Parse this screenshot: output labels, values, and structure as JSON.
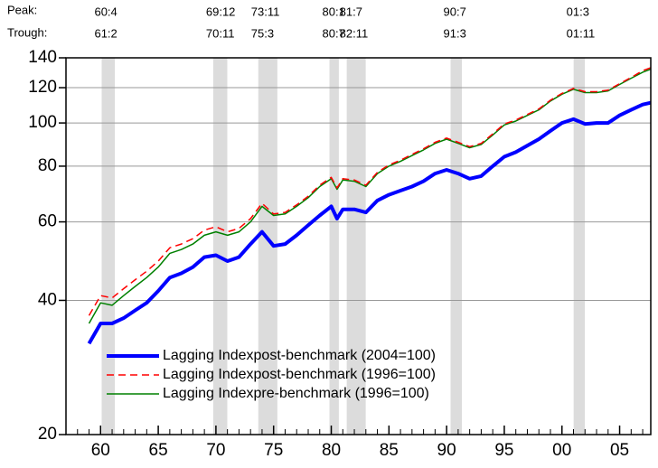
{
  "chart_data": {
    "type": "line",
    "peak_label": "Peak:",
    "trough_label": "Trough:",
    "recessions": [
      {
        "peak": {
          "value": 1960.25,
          "label": "60:4"
        },
        "trough": {
          "value": 1961.08,
          "label": "61:2"
        }
      },
      {
        "peak": {
          "value": 1969.92,
          "label": "69:12"
        },
        "trough": {
          "value": 1970.83,
          "label": "70:11"
        }
      },
      {
        "peak": {
          "value": 1973.83,
          "label": "73:11"
        },
        "trough": {
          "value": 1975.17,
          "label": "75:3"
        }
      },
      {
        "peak": {
          "value": 1980.0,
          "label": "80:1"
        },
        "trough": {
          "value": 1980.5,
          "label": "80:7"
        }
      },
      {
        "peak": {
          "value": 1981.5,
          "label": "81:7"
        },
        "trough": {
          "value": 1982.83,
          "label": "82:11"
        }
      },
      {
        "peak": {
          "value": 1990.5,
          "label": "90:7"
        },
        "trough": {
          "value": 1991.17,
          "label": "91:3"
        }
      },
      {
        "peak": {
          "value": 2001.17,
          "label": "01:3"
        },
        "trough": {
          "value": 2001.83,
          "label": "01:11"
        }
      }
    ],
    "x": [
      1959,
      1960,
      1961,
      1962,
      1963,
      1964,
      1965,
      1966,
      1967,
      1968,
      1969,
      1970,
      1971,
      1972,
      1973,
      1974,
      1975,
      1976,
      1977,
      1978,
      1979,
      1980,
      1980.5,
      1981,
      1982,
      1983,
      1984,
      1985,
      1986,
      1987,
      1988,
      1989,
      1990,
      1991,
      1992,
      1993,
      1994,
      1995,
      1996,
      1997,
      1998,
      1999,
      2000,
      2001,
      2002,
      2003,
      2004,
      2005,
      2006,
      2007,
      2007.7
    ],
    "series": [
      {
        "name": "Lagging Indexpost-benchmark (2004=100)",
        "color": "#0000ff",
        "width": 4,
        "dash": false,
        "values": [
          32,
          35.5,
          35.5,
          36.5,
          38,
          39.5,
          42,
          45,
          46,
          47.5,
          50,
          50.5,
          49,
          50,
          53.5,
          57,
          53,
          53.5,
          56,
          59,
          62,
          65,
          61,
          64,
          64,
          63,
          67,
          69,
          70.5,
          72,
          74,
          77,
          78.5,
          77,
          75,
          76,
          80,
          84,
          86,
          89,
          92,
          96,
          100,
          102,
          99.5,
          100,
          100,
          104,
          107,
          110,
          111
        ]
      },
      {
        "name": "Lagging Indexpost-benchmark (1996=100)",
        "color": "#ff0000",
        "width": 1.5,
        "dash": true,
        "values": [
          37,
          41,
          40.5,
          42.5,
          44.5,
          46.5,
          49,
          52.5,
          53.5,
          55,
          57.5,
          58.5,
          57,
          58,
          61,
          66,
          62.5,
          63,
          65.5,
          68.5,
          72.5,
          75.5,
          71.5,
          75,
          74.5,
          72.5,
          77.5,
          80.5,
          82.5,
          85,
          87.5,
          90.5,
          92.5,
          90.5,
          88.5,
          90,
          94.5,
          99.5,
          101.5,
          104.5,
          107.5,
          112.5,
          116.5,
          119.5,
          117.5,
          117.5,
          118.5,
          122.5,
          126.5,
          131,
          133
        ]
      },
      {
        "name": "Lagging Indexpre-benchmark (1996=100)",
        "color": "#008000",
        "width": 1.5,
        "dash": false,
        "values": [
          35.5,
          39.5,
          39,
          41,
          43,
          45,
          47.5,
          51,
          52,
          53.5,
          56,
          57,
          56,
          57,
          60,
          65,
          62,
          62.5,
          65,
          68,
          72,
          75,
          71,
          74.5,
          74,
          72,
          77,
          80,
          82,
          84.5,
          87,
          90,
          92,
          90,
          88,
          89.5,
          94,
          99,
          101,
          104,
          107,
          112,
          116,
          119,
          117,
          117,
          118,
          122,
          126,
          130,
          132
        ]
      }
    ],
    "xlim": [
      1957,
      2007.7
    ],
    "xticks": [
      {
        "value": 1960,
        "label": "60"
      },
      {
        "value": 1965,
        "label": "65"
      },
      {
        "value": 1970,
        "label": "70"
      },
      {
        "value": 1975,
        "label": "75"
      },
      {
        "value": 1980,
        "label": "80"
      },
      {
        "value": 1985,
        "label": "85"
      },
      {
        "value": 1990,
        "label": "90"
      },
      {
        "value": 1995,
        "label": "95"
      },
      {
        "value": 2000,
        "label": "00"
      },
      {
        "value": 2005,
        "label": "05"
      }
    ],
    "xminorticks": [
      1958,
      1959,
      1961,
      1962,
      1963,
      1964,
      1966,
      1967,
      1968,
      1969,
      1971,
      1972,
      1973,
      1974,
      1976,
      1977,
      1978,
      1979,
      1981,
      1982,
      1983,
      1984,
      1986,
      1987,
      1988,
      1989,
      1991,
      1992,
      1993,
      1994,
      1996,
      1997,
      1998,
      1999,
      2001,
      2002,
      2003,
      2004,
      2006,
      2007
    ],
    "ylim": [
      20,
      140
    ],
    "yticks": [
      20,
      40,
      60,
      80,
      100,
      120,
      140
    ],
    "log_y": true,
    "grid": true,
    "legend": "lower left",
    "shade_color": "#dcdcdc"
  }
}
